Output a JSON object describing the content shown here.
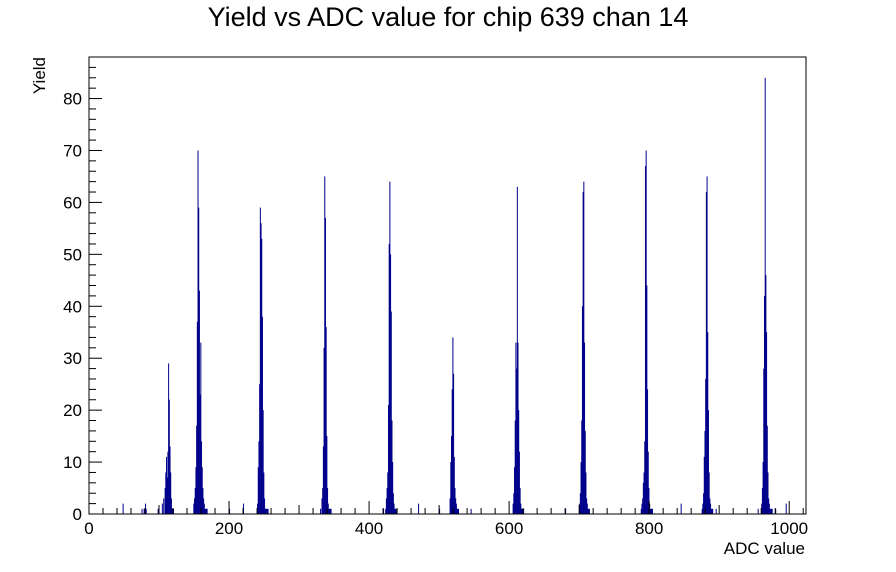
{
  "chart_data": {
    "type": "bar",
    "title": "Yield vs ADC value for chip 639 chan 14",
    "xlabel": "ADC value",
    "ylabel": "Yield",
    "xlim": [
      0,
      1024
    ],
    "ylim": [
      0,
      88
    ],
    "x_ticks": [
      0,
      200,
      400,
      600,
      800,
      1000
    ],
    "y_ticks": [
      0,
      10,
      20,
      30,
      40,
      50,
      60,
      70,
      80
    ],
    "grid": false,
    "legend": "none",
    "colors": {
      "line": "#00008b",
      "axis": "#000000",
      "background": "#ffffff"
    },
    "series": [
      {
        "x": [
          48,
          75,
          78,
          80,
          81,
          98,
          104,
          106,
          108,
          109,
          110,
          111,
          112,
          113,
          114,
          115,
          116,
          117,
          118,
          119,
          120,
          149,
          150,
          151,
          152,
          153,
          154,
          155,
          156,
          157,
          158,
          159,
          160,
          161,
          162,
          163,
          164,
          165,
          166,
          167,
          168,
          200,
          220,
          240,
          241,
          242,
          243,
          244,
          245,
          246,
          247,
          248,
          249,
          250,
          251,
          252,
          253,
          254,
          255,
          330,
          332,
          333,
          334,
          335,
          336,
          337,
          338,
          339,
          340,
          341,
          342,
          343,
          344,
          345,
          420,
          423,
          424,
          425,
          426,
          427,
          428,
          429,
          430,
          431,
          432,
          433,
          434,
          435,
          436,
          437,
          438,
          470,
          500,
          515,
          516,
          517,
          518,
          519,
          520,
          521,
          522,
          523,
          524,
          525,
          526,
          527,
          545,
          605,
          606,
          607,
          608,
          609,
          610,
          611,
          612,
          613,
          614,
          615,
          616,
          617,
          618,
          619,
          620,
          680,
          700,
          701,
          702,
          703,
          704,
          705,
          706,
          707,
          708,
          709,
          710,
          711,
          712,
          713,
          714,
          788,
          789,
          790,
          791,
          792,
          793,
          794,
          795,
          796,
          797,
          798,
          799,
          800,
          801,
          802,
          803,
          804,
          845,
          875,
          876,
          877,
          878,
          879,
          880,
          881,
          882,
          883,
          884,
          885,
          886,
          887,
          888,
          889,
          890,
          895,
          955,
          960,
          961,
          962,
          963,
          964,
          965,
          966,
          967,
          968,
          969,
          970,
          971,
          972,
          973,
          974,
          975,
          980,
          995
        ],
        "values": [
          2,
          1,
          1,
          2,
          1,
          1,
          2,
          3,
          5,
          8,
          11,
          7,
          12,
          29,
          22,
          13,
          8,
          3,
          1,
          1,
          1,
          2,
          3,
          5,
          9,
          17,
          37,
          70,
          59,
          43,
          23,
          33,
          14,
          9,
          5,
          3,
          2,
          1,
          1,
          1,
          1,
          1,
          2,
          2,
          9,
          14,
          25,
          59,
          56,
          53,
          38,
          20,
          8,
          3,
          1,
          1,
          1,
          1,
          1,
          1,
          3,
          5,
          13,
          32,
          65,
          57,
          36,
          15,
          5,
          2,
          1,
          1,
          1,
          1,
          1,
          1,
          3,
          5,
          8,
          21,
          52,
          64,
          50,
          39,
          18,
          10,
          4,
          2,
          1,
          1,
          1,
          2,
          1,
          3,
          10,
          15,
          24,
          34,
          27,
          11,
          5,
          3,
          2,
          1,
          1,
          1,
          1,
          2,
          4,
          9,
          18,
          33,
          28,
          63,
          33,
          20,
          12,
          5,
          2,
          1,
          1,
          1,
          1,
          1,
          2,
          4,
          10,
          18,
          40,
          62,
          64,
          33,
          16,
          8,
          3,
          2,
          1,
          1,
          1,
          1,
          2,
          3,
          6,
          8,
          14,
          67,
          70,
          44,
          24,
          12,
          5,
          2,
          1,
          1,
          1,
          1,
          2,
          1,
          2,
          4,
          11,
          16,
          26,
          62,
          65,
          35,
          20,
          8,
          3,
          2,
          1,
          1,
          1,
          1,
          1,
          2,
          5,
          10,
          28,
          42,
          84,
          46,
          35,
          17,
          8,
          3,
          2,
          1,
          1,
          1,
          1,
          1,
          2
        ]
      }
    ]
  }
}
